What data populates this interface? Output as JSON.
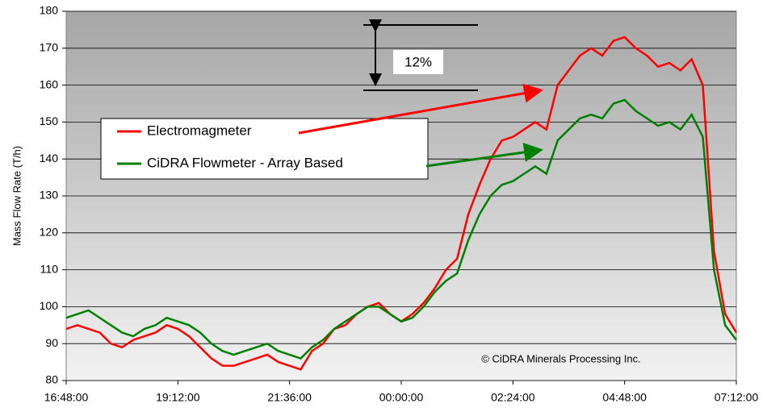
{
  "chart_data": {
    "type": "line",
    "y_label": "Mass Flow Rate (T/h)",
    "annotation": "12%",
    "copyright": "© CiDRA Minerals Processing Inc.",
    "categories": [
      "16:48:00",
      null,
      null,
      null,
      null,
      null,
      null,
      null,
      null,
      null,
      "19:12:00",
      null,
      null,
      null,
      null,
      null,
      null,
      null,
      null,
      null,
      "21:36:00",
      null,
      null,
      null,
      null,
      null,
      null,
      null,
      null,
      null,
      "00:00:00",
      null,
      null,
      null,
      null,
      null,
      null,
      null,
      null,
      null,
      "02:24:00",
      null,
      null,
      null,
      null,
      null,
      null,
      null,
      null,
      null,
      "04:48:00",
      null,
      null,
      null,
      null,
      null,
      null,
      null,
      null,
      null,
      "07:12:00"
    ],
    "series": [
      {
        "name": "Electromagmeter",
        "color": "#ff0000",
        "values": [
          94,
          95,
          94,
          93,
          90,
          89,
          91,
          92,
          93,
          95,
          94,
          92,
          89,
          86,
          84,
          84,
          85,
          86,
          87,
          85,
          84,
          83,
          88,
          90,
          94,
          95,
          98,
          100,
          101,
          98,
          96,
          98,
          101,
          105,
          110,
          113,
          125,
          133,
          140,
          145,
          146,
          148,
          150,
          148,
          160,
          164,
          168,
          170,
          168,
          172,
          173,
          170,
          168,
          165,
          166,
          164,
          167,
          160,
          115,
          98,
          93
        ]
      },
      {
        "name": "CiDRA Flowmeter - Array Based",
        "color": "#008000",
        "values": [
          97,
          98,
          99,
          97,
          95,
          93,
          92,
          94,
          95,
          97,
          96,
          95,
          93,
          90,
          88,
          87,
          88,
          89,
          90,
          88,
          87,
          86,
          89,
          91,
          94,
          96,
          98,
          100,
          100,
          98,
          96,
          97,
          100,
          104,
          107,
          109,
          118,
          125,
          130,
          133,
          134,
          136,
          138,
          136,
          145,
          148,
          151,
          152,
          151,
          155,
          156,
          153,
          151,
          149,
          150,
          148,
          152,
          146,
          110,
          95,
          91
        ]
      }
    ],
    "ylim": [
      80,
      180
    ],
    "yticks": [
      80,
      90,
      100,
      110,
      120,
      130,
      140,
      150,
      160,
      170,
      180
    ],
    "grid": true
  }
}
